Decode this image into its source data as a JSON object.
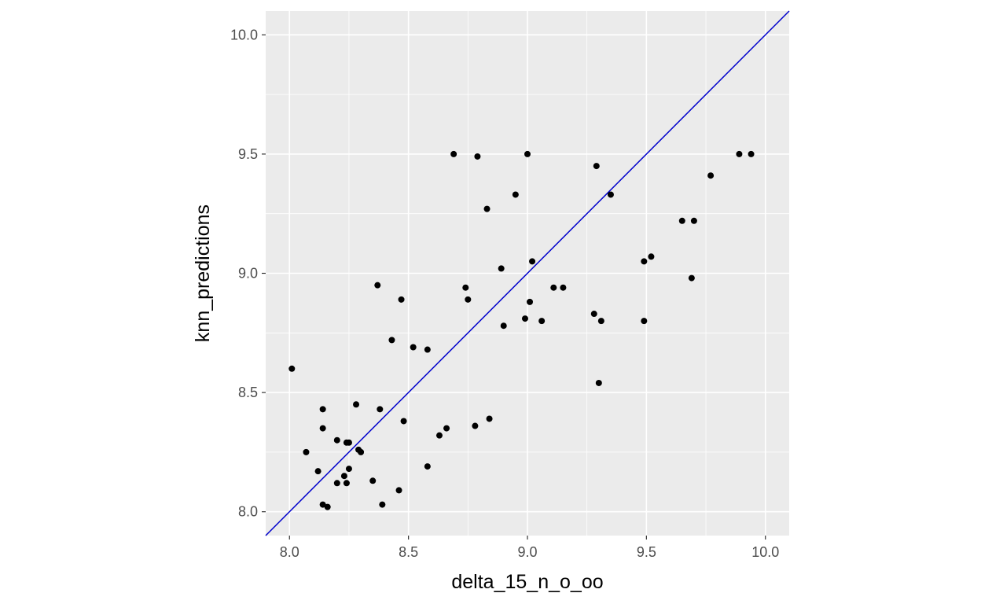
{
  "chart_data": {
    "type": "scatter",
    "title": "",
    "xlabel": "delta_15_n_o_oo",
    "ylabel": "knn_predictions",
    "xlim": [
      7.9,
      10.1
    ],
    "ylim": [
      7.9,
      10.1
    ],
    "x_ticks": [
      8.0,
      8.5,
      9.0,
      9.5,
      10.0
    ],
    "y_ticks": [
      8.0,
      8.5,
      9.0,
      9.5,
      10.0
    ],
    "x_tick_labels": [
      "8.0",
      "8.5",
      "9.0",
      "9.5",
      "10.0"
    ],
    "y_tick_labels": [
      "8.0",
      "8.5",
      "9.0",
      "9.5",
      "10.0"
    ],
    "grid": true,
    "panel_background": "#ebebeb",
    "grid_color": "#ffffff",
    "point_color": "#000000",
    "reference_line": {
      "type": "identity",
      "slope": 1,
      "intercept": 0,
      "color": "#0000cc"
    },
    "points": [
      {
        "x": 8.01,
        "y": 8.6
      },
      {
        "x": 8.07,
        "y": 8.25
      },
      {
        "x": 8.12,
        "y": 8.17
      },
      {
        "x": 8.14,
        "y": 8.43
      },
      {
        "x": 8.14,
        "y": 8.35
      },
      {
        "x": 8.14,
        "y": 8.03
      },
      {
        "x": 8.16,
        "y": 8.02
      },
      {
        "x": 8.2,
        "y": 8.12
      },
      {
        "x": 8.2,
        "y": 8.3
      },
      {
        "x": 8.23,
        "y": 8.15
      },
      {
        "x": 8.24,
        "y": 8.12
      },
      {
        "x": 8.24,
        "y": 8.29
      },
      {
        "x": 8.25,
        "y": 8.29
      },
      {
        "x": 8.25,
        "y": 8.18
      },
      {
        "x": 8.28,
        "y": 8.45
      },
      {
        "x": 8.29,
        "y": 8.26
      },
      {
        "x": 8.3,
        "y": 8.25
      },
      {
        "x": 8.35,
        "y": 8.13
      },
      {
        "x": 8.37,
        "y": 8.95
      },
      {
        "x": 8.38,
        "y": 8.43
      },
      {
        "x": 8.39,
        "y": 8.03
      },
      {
        "x": 8.43,
        "y": 8.72
      },
      {
        "x": 8.46,
        "y": 8.09
      },
      {
        "x": 8.47,
        "y": 8.89
      },
      {
        "x": 8.48,
        "y": 8.38
      },
      {
        "x": 8.52,
        "y": 8.69
      },
      {
        "x": 8.58,
        "y": 8.19
      },
      {
        "x": 8.58,
        "y": 8.68
      },
      {
        "x": 8.63,
        "y": 8.32
      },
      {
        "x": 8.66,
        "y": 8.35
      },
      {
        "x": 8.69,
        "y": 9.5
      },
      {
        "x": 8.74,
        "y": 8.94
      },
      {
        "x": 8.75,
        "y": 8.89
      },
      {
        "x": 8.78,
        "y": 8.36
      },
      {
        "x": 8.79,
        "y": 9.49
      },
      {
        "x": 8.83,
        "y": 9.27
      },
      {
        "x": 8.84,
        "y": 8.39
      },
      {
        "x": 8.89,
        "y": 9.02
      },
      {
        "x": 8.9,
        "y": 8.78
      },
      {
        "x": 8.95,
        "y": 9.33
      },
      {
        "x": 8.99,
        "y": 8.81
      },
      {
        "x": 9.0,
        "y": 9.5
      },
      {
        "x": 9.01,
        "y": 8.88
      },
      {
        "x": 9.02,
        "y": 9.05
      },
      {
        "x": 9.06,
        "y": 8.8
      },
      {
        "x": 9.11,
        "y": 8.94
      },
      {
        "x": 9.15,
        "y": 8.94
      },
      {
        "x": 9.28,
        "y": 8.83
      },
      {
        "x": 9.29,
        "y": 9.45
      },
      {
        "x": 9.3,
        "y": 8.54
      },
      {
        "x": 9.31,
        "y": 8.8
      },
      {
        "x": 9.35,
        "y": 9.33
      },
      {
        "x": 9.49,
        "y": 8.8
      },
      {
        "x": 9.49,
        "y": 9.05
      },
      {
        "x": 9.52,
        "y": 9.07
      },
      {
        "x": 9.65,
        "y": 9.22
      },
      {
        "x": 9.69,
        "y": 8.98
      },
      {
        "x": 9.7,
        "y": 9.22
      },
      {
        "x": 9.77,
        "y": 9.41
      },
      {
        "x": 9.89,
        "y": 9.5
      },
      {
        "x": 9.94,
        "y": 9.5
      }
    ]
  }
}
